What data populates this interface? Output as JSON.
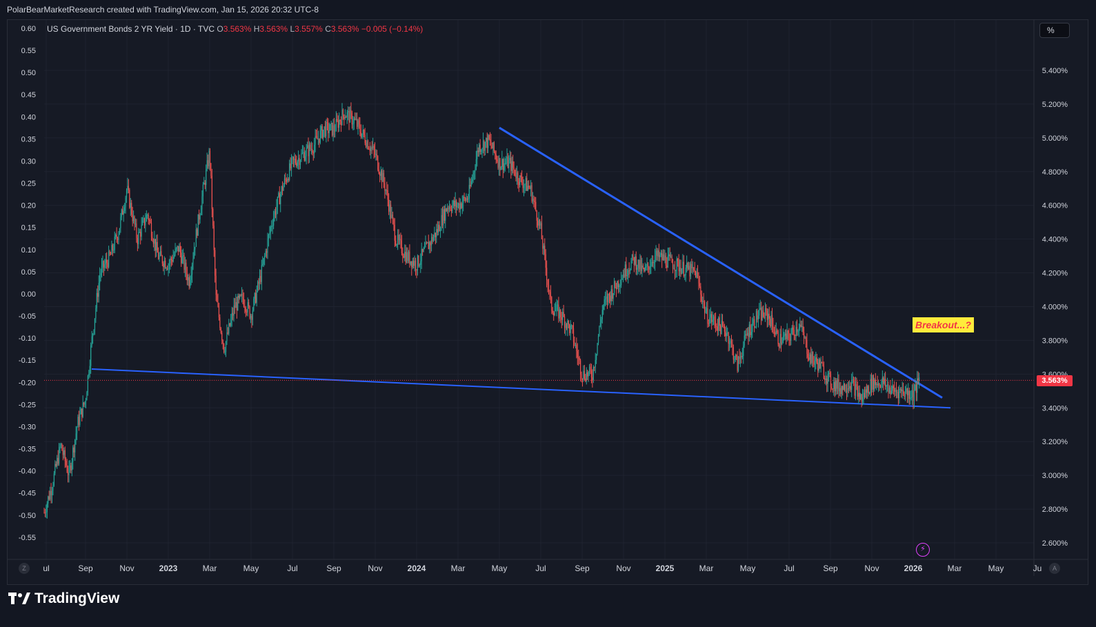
{
  "header": {
    "credit": "PolarBearMarketResearch created with TradingView.com, Jan 15, 2026 20:32 UTC-8"
  },
  "legend": {
    "symbol": "US Government Bonds 2 YR Yield · 1D · TVC",
    "o_label": "O",
    "o_value": "3.563%",
    "h_label": "H",
    "h_value": "3.563%",
    "l_label": "L",
    "l_value": "3.557%",
    "c_label": "C",
    "c_value": "3.563%",
    "change": "−0.005 (−0.14%)"
  },
  "toolbar": {
    "percent_button": "%"
  },
  "annotations": {
    "breakout_label": "Breakout...?"
  },
  "scale_buttons": {
    "z": "Z",
    "a": "A"
  },
  "footer": {
    "brand": "TradingView"
  },
  "colors": {
    "background": "#161a25",
    "up_candle": "#26a69a",
    "down_candle": "#ef5350",
    "trendline": "#2962ff",
    "price_badge": "#f23645",
    "annotation_bg": "#ffeb3b"
  },
  "chart_data": {
    "type": "candlestick",
    "title": "US Government Bonds 2 YR Yield · 1D · TVC",
    "last_price": "3.563%",
    "right_axis_ticks": [
      "5.400%",
      "5.200%",
      "5.000%",
      "4.800%",
      "4.600%",
      "4.400%",
      "4.200%",
      "4.000%",
      "3.800%",
      "3.600%",
      "3.400%",
      "3.200%",
      "3.000%",
      "2.800%",
      "2.600%"
    ],
    "right_axis_values": [
      5.4,
      5.2,
      5.0,
      4.8,
      4.6,
      4.4,
      4.2,
      4.0,
      3.8,
      3.6,
      3.4,
      3.2,
      3.0,
      2.8,
      2.6
    ],
    "left_axis_ticks": [
      "0.60",
      "0.55",
      "0.50",
      "0.45",
      "0.40",
      "0.35",
      "0.30",
      "0.25",
      "0.20",
      "0.15",
      "0.10",
      "0.05",
      "0.00",
      "-0.05",
      "-0.10",
      "-0.15",
      "-0.20",
      "-0.25",
      "-0.30",
      "-0.35",
      "-0.40",
      "-0.45",
      "-0.50",
      "-0.55"
    ],
    "x_ticks": [
      "ul",
      "Sep",
      "Nov",
      "2023",
      "Mar",
      "May",
      "Jul",
      "Sep",
      "Nov",
      "2024",
      "Mar",
      "May",
      "Jul",
      "Sep",
      "Nov",
      "2025",
      "Mar",
      "May",
      "Jul",
      "Sep",
      "Nov",
      "2026",
      "Mar",
      "May",
      "Ju"
    ],
    "x_tick_months": [
      12.1,
      14,
      16,
      18,
      20,
      22,
      24,
      26,
      28,
      30,
      32,
      34,
      36,
      38,
      40,
      42,
      44,
      46,
      48,
      50,
      52,
      54,
      56,
      58,
      60
    ],
    "x_month_index_note": "",
    "series_close_monthly": [
      {
        "m": 12.0,
        "v": 2.78
      },
      {
        "m": 12.4,
        "v": 2.95
      },
      {
        "m": 12.8,
        "v": 3.18
      },
      {
        "m": 13.2,
        "v": 3.0
      },
      {
        "m": 13.6,
        "v": 3.3
      },
      {
        "m": 14.0,
        "v": 3.45
      },
      {
        "m": 14.3,
        "v": 3.8
      },
      {
        "m": 14.7,
        "v": 4.2
      },
      {
        "m": 15.2,
        "v": 4.3
      },
      {
        "m": 15.6,
        "v": 4.45
      },
      {
        "m": 16.0,
        "v": 4.7
      },
      {
        "m": 16.5,
        "v": 4.4
      },
      {
        "m": 17.0,
        "v": 4.55
      },
      {
        "m": 17.5,
        "v": 4.3
      },
      {
        "m": 18.0,
        "v": 4.25
      },
      {
        "m": 18.5,
        "v": 4.35
      },
      {
        "m": 19.0,
        "v": 4.15
      },
      {
        "m": 19.5,
        "v": 4.55
      },
      {
        "m": 20.0,
        "v": 4.92
      },
      {
        "m": 20.3,
        "v": 4.05
      },
      {
        "m": 20.7,
        "v": 3.75
      },
      {
        "m": 21.2,
        "v": 4.0
      },
      {
        "m": 21.6,
        "v": 4.05
      },
      {
        "m": 22.0,
        "v": 3.95
      },
      {
        "m": 22.5,
        "v": 4.2
      },
      {
        "m": 23.0,
        "v": 4.5
      },
      {
        "m": 23.5,
        "v": 4.7
      },
      {
        "m": 24.0,
        "v": 4.85
      },
      {
        "m": 24.5,
        "v": 4.9
      },
      {
        "m": 25.0,
        "v": 4.95
      },
      {
        "m": 25.5,
        "v": 5.05
      },
      {
        "m": 26.0,
        "v": 5.05
      },
      {
        "m": 26.5,
        "v": 5.15
      },
      {
        "m": 27.0,
        "v": 5.1
      },
      {
        "m": 27.5,
        "v": 5.0
      },
      {
        "m": 28.0,
        "v": 4.9
      },
      {
        "m": 28.5,
        "v": 4.7
      },
      {
        "m": 29.0,
        "v": 4.4
      },
      {
        "m": 29.5,
        "v": 4.3
      },
      {
        "m": 30.0,
        "v": 4.25
      },
      {
        "m": 30.5,
        "v": 4.35
      },
      {
        "m": 31.0,
        "v": 4.45
      },
      {
        "m": 31.5,
        "v": 4.6
      },
      {
        "m": 32.0,
        "v": 4.6
      },
      {
        "m": 32.5,
        "v": 4.65
      },
      {
        "m": 33.0,
        "v": 4.95
      },
      {
        "m": 33.5,
        "v": 4.98
      },
      {
        "m": 34.0,
        "v": 4.85
      },
      {
        "m": 34.5,
        "v": 4.85
      },
      {
        "m": 35.0,
        "v": 4.75
      },
      {
        "m": 35.5,
        "v": 4.7
      },
      {
        "m": 36.0,
        "v": 4.45
      },
      {
        "m": 36.5,
        "v": 4.0
      },
      {
        "m": 37.0,
        "v": 3.95
      },
      {
        "m": 37.5,
        "v": 3.85
      },
      {
        "m": 38.0,
        "v": 3.6
      },
      {
        "m": 38.5,
        "v": 3.6
      },
      {
        "m": 39.0,
        "v": 4.0
      },
      {
        "m": 39.5,
        "v": 4.1
      },
      {
        "m": 40.0,
        "v": 4.2
      },
      {
        "m": 40.5,
        "v": 4.28
      },
      {
        "m": 41.0,
        "v": 4.2
      },
      {
        "m": 41.5,
        "v": 4.3
      },
      {
        "m": 42.0,
        "v": 4.28
      },
      {
        "m": 42.5,
        "v": 4.25
      },
      {
        "m": 43.0,
        "v": 4.22
      },
      {
        "m": 43.5,
        "v": 4.2
      },
      {
        "m": 44.0,
        "v": 3.95
      },
      {
        "m": 44.5,
        "v": 3.9
      },
      {
        "m": 45.0,
        "v": 3.85
      },
      {
        "m": 45.5,
        "v": 3.65
      },
      {
        "m": 46.0,
        "v": 3.85
      },
      {
        "m": 46.5,
        "v": 3.95
      },
      {
        "m": 47.0,
        "v": 3.95
      },
      {
        "m": 47.5,
        "v": 3.8
      },
      {
        "m": 48.0,
        "v": 3.82
      },
      {
        "m": 48.5,
        "v": 3.9
      },
      {
        "m": 49.0,
        "v": 3.7
      },
      {
        "m": 49.5,
        "v": 3.65
      },
      {
        "m": 50.0,
        "v": 3.55
      },
      {
        "m": 50.5,
        "v": 3.52
      },
      {
        "m": 51.0,
        "v": 3.55
      },
      {
        "m": 51.5,
        "v": 3.45
      },
      {
        "m": 52.0,
        "v": 3.55
      },
      {
        "m": 52.5,
        "v": 3.55
      },
      {
        "m": 53.0,
        "v": 3.5
      },
      {
        "m": 53.5,
        "v": 3.5
      },
      {
        "m": 54.0,
        "v": 3.48
      },
      {
        "m": 54.3,
        "v": 3.563
      }
    ],
    "trendlines": [
      {
        "name": "",
        "start": {
          "m": 34.0,
          "v": 5.06
        },
        "end": {
          "m": 55.4,
          "v": 3.46
        }
      },
      {
        "name": "",
        "start": {
          "m": 14.3,
          "v": 3.63
        },
        "end": {
          "m": 55.8,
          "v": 3.4
        }
      }
    ],
    "ylim": [
      2.57,
      5.62
    ],
    "grid": true,
    "scale_unit": "%"
  }
}
